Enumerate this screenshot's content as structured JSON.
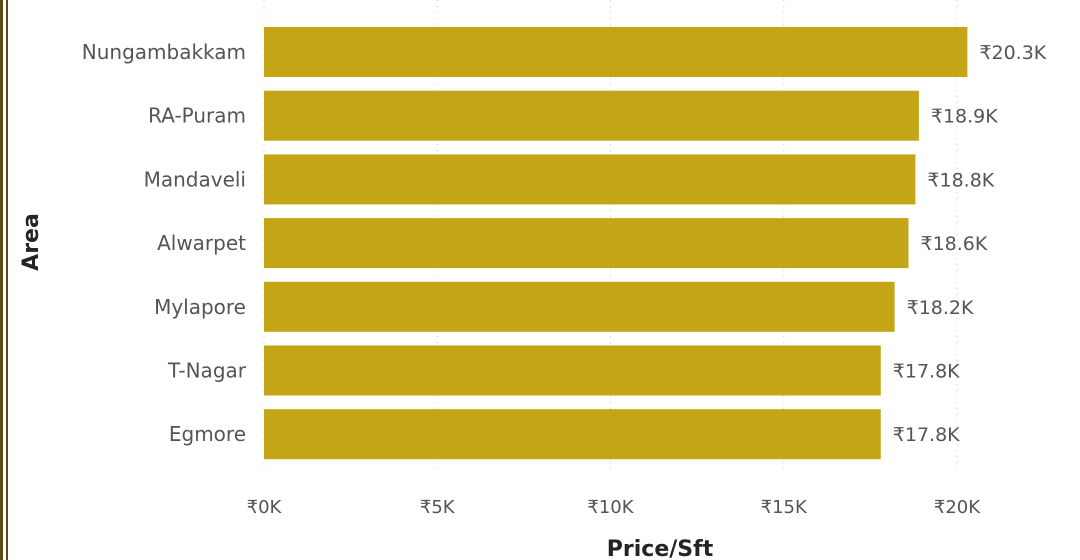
{
  "chart_data": {
    "type": "bar",
    "orientation": "horizontal",
    "categories": [
      "Nungambakkam",
      "RA-Puram",
      "Mandaveli",
      "Alwarpet",
      "Mylapore",
      "T-Nagar",
      "Egmore"
    ],
    "values": [
      20300,
      18900,
      18800,
      18600,
      18200,
      17800,
      17800
    ],
    "value_labels": [
      "₹20.3K",
      "₹18.9K",
      "₹18.8K",
      "₹18.6K",
      "₹18.2K",
      "₹17.8K",
      "₹17.8K"
    ],
    "xlabel": "Price/Sft",
    "ylabel": "Area",
    "xlim": [
      0,
      20000
    ],
    "x_ticks": [
      0,
      5000,
      10000,
      15000,
      20000
    ],
    "x_tick_labels": [
      "₹0K",
      "₹5K",
      "₹10K",
      "₹15K",
      "₹20K"
    ],
    "grid": "vertical-dotted",
    "bar_color": "#C4A516"
  }
}
